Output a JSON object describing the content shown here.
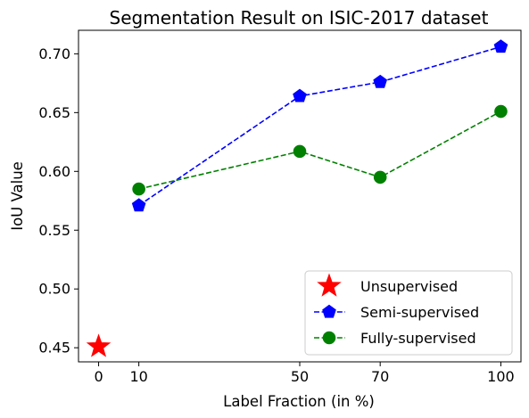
{
  "chart_data": {
    "type": "line",
    "title": "Segmentation Result on ISIC-2017 dataset",
    "xlabel": "Label Fraction (in %)",
    "ylabel": "IoU Value",
    "xlim": [
      -5,
      105
    ],
    "ylim": [
      0.438,
      0.72
    ],
    "x_ticks": [
      0,
      10,
      50,
      70,
      100
    ],
    "x_tick_labels": [
      "0",
      "10",
      "50",
      "70",
      "100"
    ],
    "y_ticks": [
      0.45,
      0.5,
      0.55,
      0.6,
      0.65,
      0.7
    ],
    "y_tick_labels": [
      "0.45",
      "0.50",
      "0.55",
      "0.60",
      "0.65",
      "0.70"
    ],
    "grid": false,
    "legend_position": "lower-right",
    "series": [
      {
        "name": "Unsupervised",
        "marker": "star",
        "linestyle": "none",
        "color": "#ff0000",
        "x": [
          0
        ],
        "y": [
          0.451
        ]
      },
      {
        "name": "Semi-supervised",
        "marker": "pentagon",
        "linestyle": "dashed",
        "color": "#0000ff",
        "x": [
          10,
          50,
          70,
          100
        ],
        "y": [
          0.571,
          0.664,
          0.676,
          0.706
        ]
      },
      {
        "name": "Fully-supervised",
        "marker": "circle",
        "linestyle": "dashed",
        "color": "#008000",
        "x": [
          10,
          50,
          70,
          100
        ],
        "y": [
          0.585,
          0.617,
          0.595,
          0.651
        ]
      }
    ]
  }
}
